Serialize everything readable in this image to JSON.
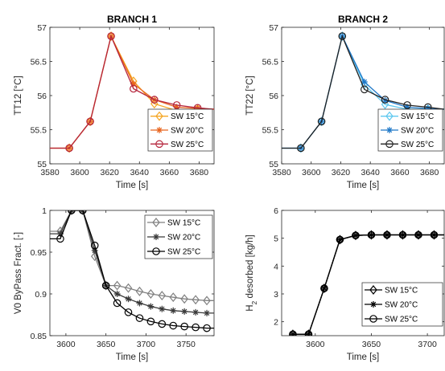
{
  "chart_data": [
    {
      "type": "line",
      "title": "BRANCH 1",
      "xlabel": "Time [s]",
      "ylabel": "TT12 [°C]",
      "xlim": [
        3580,
        3690
      ],
      "ylim": [
        55,
        57
      ],
      "xticks": [
        3580,
        3600,
        3620,
        3640,
        3660,
        3680
      ],
      "xtick_labels": [
        "3580",
        "3600",
        "3620",
        "3640",
        "3660",
        "3680"
      ],
      "yticks": [
        55,
        55.5,
        56,
        56.5,
        57
      ],
      "ytick_labels": [
        "55",
        "55.5",
        "56",
        "56.5",
        "57"
      ],
      "legend_position": "bottom-right",
      "series": [
        {
          "name": "SW 15°C",
          "marker": "diamond",
          "color": "#f5a623",
          "x": [
            3580,
            3593,
            3607,
            3621,
            3636,
            3650,
            3665,
            3679,
            3690
          ],
          "y": [
            55.23,
            55.23,
            55.62,
            56.87,
            56.21,
            55.88,
            55.78,
            55.8,
            55.8
          ]
        },
        {
          "name": "SW 20°C",
          "marker": "asterisk",
          "color": "#e8641e",
          "x": [
            3580,
            3593,
            3607,
            3621,
            3636,
            3650,
            3665,
            3679,
            3690
          ],
          "y": [
            55.23,
            55.23,
            55.62,
            56.87,
            56.17,
            55.94,
            55.83,
            55.81,
            55.8
          ]
        },
        {
          "name": "SW 25°C",
          "marker": "circle",
          "color": "#b5253c",
          "x": [
            3580,
            3593,
            3607,
            3621,
            3636,
            3650,
            3665,
            3679,
            3690
          ],
          "y": [
            55.23,
            55.23,
            55.62,
            56.87,
            56.1,
            55.94,
            55.86,
            55.82,
            55.8
          ]
        }
      ]
    },
    {
      "type": "line",
      "title": "BRANCH 2",
      "xlabel": "Time [s]",
      "ylabel": "TT22 [°C]",
      "xlim": [
        3580,
        3690
      ],
      "ylim": [
        55,
        57
      ],
      "xticks": [
        3580,
        3600,
        3620,
        3640,
        3660,
        3680
      ],
      "xtick_labels": [
        "3580",
        "3600",
        "3620",
        "3640",
        "3660",
        "3680"
      ],
      "yticks": [
        55,
        55.5,
        56,
        56.5,
        57
      ],
      "ytick_labels": [
        "55",
        "55.5",
        "56",
        "56.5",
        "57"
      ],
      "legend_position": "bottom-right",
      "series": [
        {
          "name": "SW 15°C",
          "marker": "diamond",
          "color": "#5ec8ef",
          "x": [
            3580,
            3593,
            3607,
            3621,
            3636,
            3650,
            3665,
            3679,
            3690
          ],
          "y": [
            55.23,
            55.23,
            55.62,
            56.87,
            56.16,
            55.87,
            55.8,
            55.8,
            55.8
          ]
        },
        {
          "name": "SW 20°C",
          "marker": "asterisk",
          "color": "#1f78c8",
          "x": [
            3580,
            3593,
            3607,
            3621,
            3636,
            3650,
            3665,
            3679,
            3690
          ],
          "y": [
            55.23,
            55.23,
            55.62,
            56.87,
            56.2,
            55.93,
            55.83,
            55.81,
            55.8
          ]
        },
        {
          "name": "SW 25°C",
          "marker": "circle",
          "color": "#222222",
          "x": [
            3580,
            3593,
            3607,
            3621,
            3636,
            3650,
            3665,
            3679,
            3690
          ],
          "y": [
            55.23,
            55.23,
            55.62,
            56.87,
            56.09,
            55.94,
            55.86,
            55.83,
            55.8
          ]
        }
      ]
    },
    {
      "type": "line",
      "title": "",
      "xlabel": "Time [s]",
      "ylabel": "V0 ByPass Fract. [-]",
      "xlim": [
        3580,
        3785
      ],
      "ylim": [
        0.85,
        1.0
      ],
      "xticks": [
        3600,
        3650,
        3700,
        3750
      ],
      "xtick_labels": [
        "3600",
        "3650",
        "3700",
        "3750"
      ],
      "yticks": [
        0.85,
        0.9,
        0.95,
        1.0
      ],
      "ytick_labels": [
        "0.85",
        "0.9",
        "0.95",
        "1"
      ],
      "legend_position": "top-right",
      "series": [
        {
          "name": "SW 15°C",
          "marker": "diamond",
          "color": "#808080",
          "x": [
            3580,
            3593,
            3607,
            3621,
            3636,
            3650,
            3664,
            3678,
            3692,
            3706,
            3720,
            3734,
            3748,
            3762,
            3776,
            3785
          ],
          "y": [
            0.975,
            0.975,
            1.0,
            1.0,
            0.945,
            0.91,
            0.91,
            0.907,
            0.903,
            0.9,
            0.898,
            0.896,
            0.894,
            0.893,
            0.892,
            0.892
          ]
        },
        {
          "name": "SW 20°C",
          "marker": "asterisk",
          "color": "#3a3a3a",
          "x": [
            3580,
            3593,
            3607,
            3621,
            3636,
            3650,
            3664,
            3678,
            3692,
            3706,
            3720,
            3734,
            3748,
            3762,
            3776,
            3785
          ],
          "y": [
            0.972,
            0.972,
            1.0,
            1.0,
            0.952,
            0.91,
            0.9,
            0.894,
            0.889,
            0.885,
            0.882,
            0.88,
            0.879,
            0.878,
            0.877,
            0.877
          ]
        },
        {
          "name": "SW 25°C",
          "marker": "circle",
          "color": "#000000",
          "x": [
            3580,
            3593,
            3607,
            3621,
            3636,
            3650,
            3664,
            3678,
            3692,
            3706,
            3720,
            3734,
            3748,
            3762,
            3776,
            3785
          ],
          "y": [
            0.966,
            0.966,
            1.0,
            1.0,
            0.958,
            0.91,
            0.889,
            0.878,
            0.871,
            0.867,
            0.864,
            0.862,
            0.861,
            0.86,
            0.859,
            0.859
          ]
        }
      ]
    },
    {
      "type": "line",
      "title": "",
      "xlabel": "Time [s]",
      "ylabel": "H2 desorbed [kg/h]",
      "ylabel_main": "H",
      "ylabel_sub": "2",
      "ylabel_rest": " desorbed [kg/h]",
      "xlim": [
        3570,
        3715
      ],
      "ylim": [
        1.5,
        6
      ],
      "xticks": [
        3600,
        3650,
        3700
      ],
      "xtick_labels": [
        "3600",
        "3650",
        "3700"
      ],
      "yticks": [
        2,
        3,
        4,
        5,
        6
      ],
      "ytick_labels": [
        "2",
        "3",
        "4",
        "5",
        "6"
      ],
      "legend_position": "bottom-right",
      "series": [
        {
          "name": "SW 15°C",
          "marker": "diamond",
          "color": "#000000",
          "x": [
            3580,
            3594,
            3608,
            3622,
            3636,
            3650,
            3664,
            3678,
            3692,
            3706,
            3715
          ],
          "y": [
            1.55,
            1.55,
            3.2,
            4.95,
            5.1,
            5.12,
            5.12,
            5.12,
            5.12,
            5.12,
            5.12
          ]
        },
        {
          "name": "SW 20°C",
          "marker": "asterisk",
          "color": "#000000",
          "x": [
            3580,
            3594,
            3608,
            3622,
            3636,
            3650,
            3664,
            3678,
            3692,
            3706,
            3715
          ],
          "y": [
            1.55,
            1.55,
            3.2,
            4.95,
            5.1,
            5.12,
            5.12,
            5.12,
            5.12,
            5.12,
            5.12
          ]
        },
        {
          "name": "SW 25°C",
          "marker": "circle",
          "color": "#000000",
          "x": [
            3580,
            3594,
            3608,
            3622,
            3636,
            3650,
            3664,
            3678,
            3692,
            3706,
            3715
          ],
          "y": [
            1.55,
            1.55,
            3.2,
            4.95,
            5.1,
            5.12,
            5.12,
            5.12,
            5.12,
            5.12,
            5.12
          ]
        }
      ]
    }
  ]
}
